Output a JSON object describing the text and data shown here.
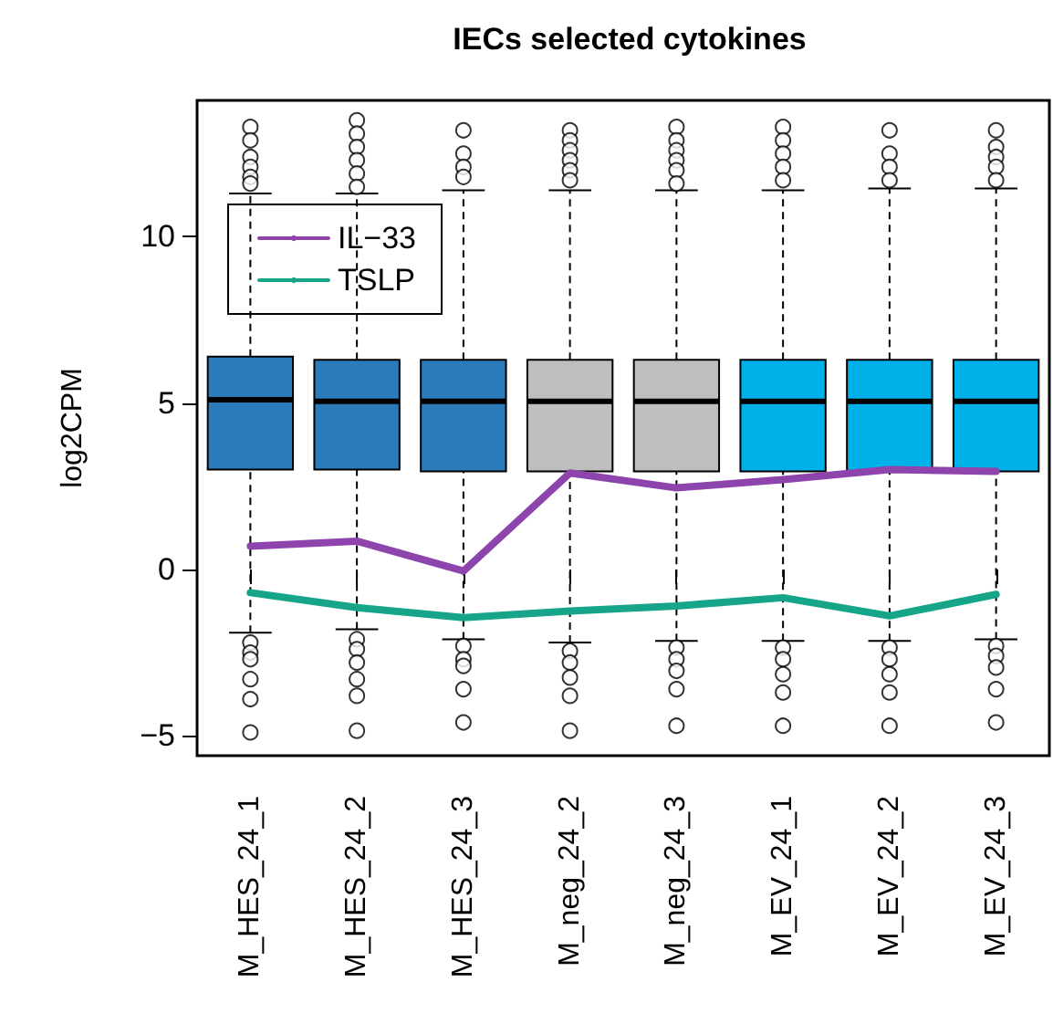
{
  "chart_data": {
    "type": "box",
    "title": "IECs selected cytokines",
    "ylabel": "log2CPM",
    "categories": [
      "M_HES_24_1",
      "M_HES_24_2",
      "M_HES_24_3",
      "M_neg_24_2",
      "M_neg_24_3",
      "M_EV_24_1",
      "M_EV_24_2",
      "M_EV_24_3"
    ],
    "colors": [
      "#2b7bba",
      "#2b7bba",
      "#2b7bba",
      "#bebebe",
      "#bebebe",
      "#00b0e8",
      "#00b0e8",
      "#00b0e8"
    ],
    "boxes": [
      {
        "low": -1.9,
        "q1": 3.0,
        "median": 5.1,
        "q3": 6.4,
        "high": 11.3,
        "outliers": [
          13.3,
          12.9,
          12.4,
          12.1,
          11.8,
          11.6,
          -2.2,
          -2.5,
          -2.7,
          -3.3,
          -3.9,
          -4.9
        ]
      },
      {
        "low": -1.8,
        "q1": 3.0,
        "median": 5.05,
        "q3": 6.3,
        "high": 11.3,
        "outliers": [
          13.5,
          13.1,
          12.7,
          12.3,
          11.9,
          11.5,
          -2.1,
          -2.4,
          -2.8,
          -3.3,
          -3.8,
          -4.85
        ]
      },
      {
        "low": -2.1,
        "q1": 2.95,
        "median": 5.05,
        "q3": 6.3,
        "high": 11.4,
        "outliers": [
          13.2,
          12.5,
          12.1,
          11.8,
          -2.3,
          -2.7,
          -2.9,
          -3.6,
          -4.6
        ]
      },
      {
        "low": -2.2,
        "q1": 2.95,
        "median": 5.05,
        "q3": 6.3,
        "high": 11.4,
        "outliers": [
          13.2,
          12.9,
          12.6,
          12.3,
          12.0,
          11.7,
          -2.45,
          -2.8,
          -3.25,
          -3.8,
          -4.85
        ]
      },
      {
        "low": -2.15,
        "q1": 2.95,
        "median": 5.05,
        "q3": 6.3,
        "high": 11.4,
        "outliers": [
          13.3,
          12.9,
          12.6,
          12.3,
          12.0,
          11.6,
          -2.35,
          -2.7,
          -3.05,
          -3.6,
          -4.7
        ]
      },
      {
        "low": -2.15,
        "q1": 2.95,
        "median": 5.05,
        "q3": 6.3,
        "high": 11.4,
        "outliers": [
          13.3,
          12.9,
          12.5,
          12.1,
          11.7,
          -2.35,
          -2.7,
          -3.15,
          -3.7,
          -4.7
        ]
      },
      {
        "low": -2.15,
        "q1": 2.95,
        "median": 5.05,
        "q3": 6.3,
        "high": 11.45,
        "outliers": [
          13.2,
          12.5,
          12.1,
          11.7,
          -2.35,
          -2.7,
          -3.15,
          -3.7,
          -4.7
        ]
      },
      {
        "low": -2.1,
        "q1": 2.95,
        "median": 5.05,
        "q3": 6.3,
        "high": 11.45,
        "outliers": [
          13.2,
          12.7,
          12.4,
          12.1,
          11.7,
          -2.3,
          -2.6,
          -2.95,
          -3.6,
          -4.6
        ]
      }
    ],
    "series": [
      {
        "type": "line",
        "name": "IL−33",
        "color": "#8e44ad",
        "values": [
          0.7,
          0.85,
          -0.05,
          2.9,
          2.45,
          2.7,
          3.0,
          2.95
        ]
      },
      {
        "type": "line",
        "name": "TSLP",
        "color": "#17a589",
        "values": [
          -0.7,
          -1.15,
          -1.45,
          -1.25,
          -1.1,
          -0.85,
          -1.4,
          -0.75
        ]
      }
    ],
    "ylim": [
      -5.6,
      14.1
    ],
    "yticks": [
      -5,
      0,
      5,
      10
    ],
    "legend": "top left",
    "grid": false,
    "marker": "none",
    "line_style": "solid"
  }
}
